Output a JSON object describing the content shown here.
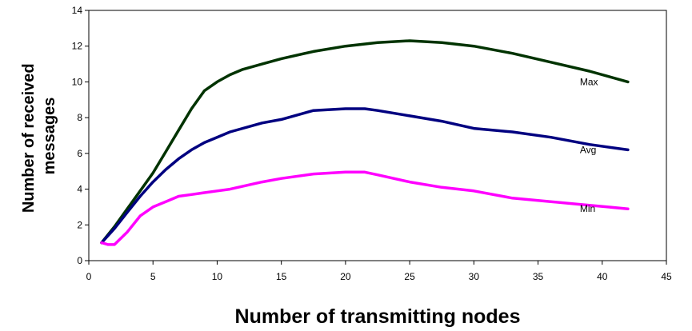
{
  "chart_data": {
    "type": "line",
    "title": "",
    "xlabel": "Number of transmitting nodes",
    "ylabel_lines": [
      "Number of received",
      "messages"
    ],
    "xlim": [
      0,
      45
    ],
    "ylim": [
      0,
      14
    ],
    "xticks": [
      0,
      5,
      10,
      15,
      20,
      25,
      30,
      35,
      40,
      45
    ],
    "yticks": [
      0,
      2,
      4,
      6,
      8,
      10,
      12,
      14
    ],
    "grid": false,
    "legend": "inline labels near line ends",
    "series": [
      {
        "name": "Max",
        "color": "#003300",
        "x": [
          1,
          2,
          3,
          4,
          5,
          6,
          7,
          8,
          9,
          10,
          11,
          12,
          13.5,
          15,
          17.5,
          20,
          22.5,
          25,
          27.5,
          30,
          33,
          36,
          39,
          42
        ],
        "y": [
          1,
          1.9,
          2.9,
          3.9,
          4.9,
          6.1,
          7.3,
          8.5,
          9.5,
          10.0,
          10.4,
          10.7,
          11.0,
          11.3,
          11.7,
          12.0,
          12.2,
          12.3,
          12.2,
          12.0,
          11.6,
          11.1,
          10.6,
          10.0
        ]
      },
      {
        "name": "Avg",
        "color": "#000080",
        "x": [
          1,
          2,
          3,
          4,
          5,
          6,
          7,
          8,
          9,
          10,
          11,
          13.5,
          15,
          17.5,
          20,
          21.5,
          22.5,
          25,
          27.5,
          30,
          33,
          36,
          39,
          42
        ],
        "y": [
          1,
          1.8,
          2.7,
          3.6,
          4.4,
          5.1,
          5.7,
          6.2,
          6.6,
          6.9,
          7.2,
          7.7,
          7.9,
          8.4,
          8.5,
          8.5,
          8.4,
          8.1,
          7.8,
          7.4,
          7.2,
          6.9,
          6.5,
          6.2
        ]
      },
      {
        "name": "Min",
        "color": "#FF00FF",
        "x": [
          1,
          1.5,
          2,
          3,
          4,
          5,
          6,
          7,
          8,
          9,
          10,
          11,
          13.5,
          15,
          17.5,
          20,
          21.5,
          22.5,
          25,
          27.5,
          30,
          33,
          36,
          39,
          42
        ],
        "y": [
          1,
          0.9,
          0.9,
          1.6,
          2.5,
          3.0,
          3.3,
          3.6,
          3.7,
          3.8,
          3.9,
          4.0,
          4.4,
          4.6,
          4.85,
          4.95,
          4.95,
          4.8,
          4.4,
          4.1,
          3.9,
          3.5,
          3.3,
          3.1,
          2.9
        ]
      }
    ]
  }
}
